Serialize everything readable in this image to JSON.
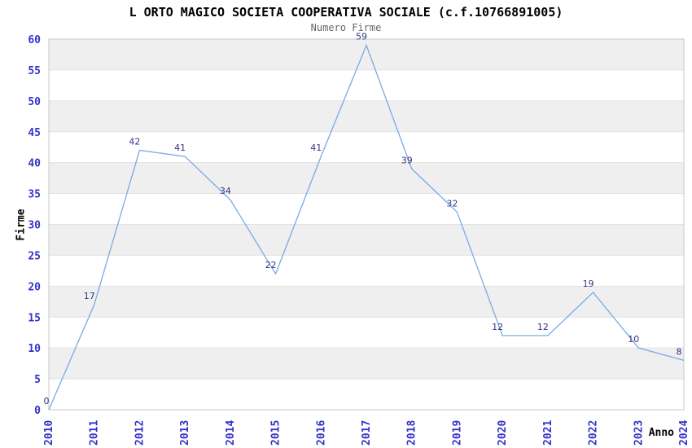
{
  "header": {
    "title": "L ORTO MAGICO SOCIETA COOPERATIVA SOCIALE (c.f.10766891005)",
    "subtitle": "Numero Firme"
  },
  "chart_data": {
    "type": "line",
    "title": "L ORTO MAGICO SOCIETA COOPERATIVA SOCIALE (c.f.10766891005)",
    "subtitle": "Numero Firme",
    "xlabel": "Anno",
    "ylabel": "Firme",
    "categories": [
      "2010",
      "2011",
      "2012",
      "2013",
      "2014",
      "2015",
      "2016",
      "2017",
      "2018",
      "2019",
      "2020",
      "2021",
      "2022",
      "2023",
      "2024"
    ],
    "values": [
      0,
      17,
      42,
      41,
      34,
      22,
      41,
      59,
      39,
      32,
      12,
      12,
      19,
      10,
      8
    ],
    "ylim": [
      0,
      60
    ],
    "ytick_step": 5,
    "grid": true,
    "alternating_bands": true,
    "legend": "none",
    "colors": {
      "line": "#79aae1",
      "data_label": "#333380",
      "tick_label": "#3333cc",
      "band": "#efefef",
      "band_alt": "#ffffff",
      "grid": "#e2e2e2",
      "border": "#c8c8c8",
      "title": "#000000",
      "subtitle": "#666666",
      "axis_title": "#000000"
    }
  }
}
